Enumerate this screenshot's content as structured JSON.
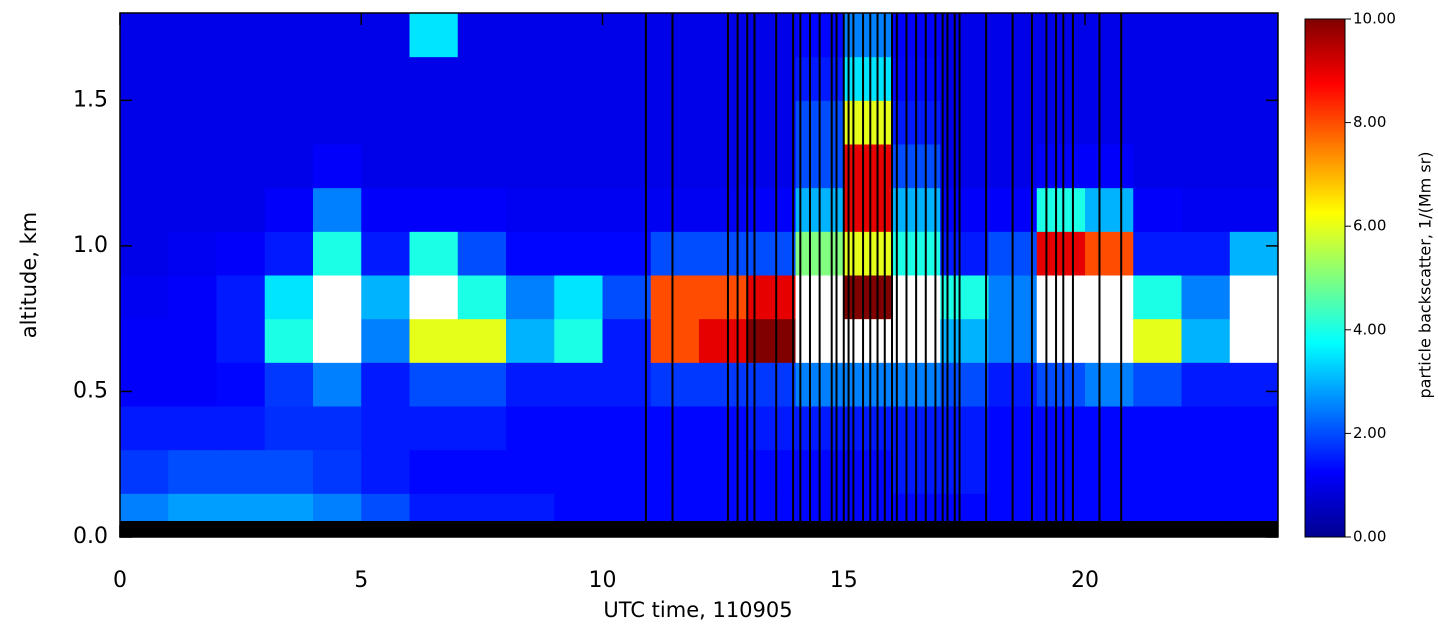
{
  "chart_data": {
    "type": "heatmap",
    "x_label": "UTC time, 110905",
    "y_label": "altitude, km",
    "colorbar_label": "particle backscatter, 1/(Mm sr)",
    "xlim": [
      0,
      24
    ],
    "ylim": [
      0,
      1.8
    ],
    "xticks": [
      0,
      5,
      10,
      15,
      20
    ],
    "yticks": [
      {
        "value": 0,
        "label": "0.0"
      },
      {
        "value": 0.5,
        "label": "0.5"
      },
      {
        "value": 1,
        "label": "1.0"
      },
      {
        "value": 1.5,
        "label": "1.5"
      }
    ],
    "clim": [
      0,
      10
    ],
    "cticks": [
      {
        "value": 0,
        "label": "0.00"
      },
      {
        "value": 2,
        "label": "2.00"
      },
      {
        "value": 4,
        "label": "4.00"
      },
      {
        "value": 6,
        "label": "6.00"
      },
      {
        "value": 8,
        "label": "8.00"
      },
      {
        "value": 10,
        "label": "10.00"
      }
    ],
    "x_edges": [
      0,
      1,
      2,
      3,
      4,
      5,
      6,
      7,
      8,
      9,
      10,
      11,
      12,
      13,
      14,
      15,
      16,
      17,
      18,
      19,
      20,
      21,
      22,
      23,
      24
    ],
    "y_edges": [
      0,
      0.15,
      0.3,
      0.45,
      0.6,
      0.75,
      0.9,
      1.05,
      1.2,
      1.35,
      1.5,
      1.65,
      1.8
    ],
    "z": [
      [
        2.5,
        2.8,
        2.8,
        2.8,
        2.5,
        2.0,
        1.5,
        1.5,
        1.5,
        1.3,
        1.3,
        1.3,
        1.3,
        1.3,
        1.3,
        1.3,
        1.3,
        1.3,
        1.3,
        1.3,
        1.3,
        1.3,
        1.3,
        1.3
      ],
      [
        1.8,
        2.0,
        2.0,
        2.0,
        1.8,
        1.5,
        1.3,
        1.3,
        1.3,
        1.3,
        1.3,
        1.3,
        1.3,
        1.3,
        1.3,
        1.3,
        1.5,
        1.5,
        1.3,
        1.3,
        1.3,
        1.3,
        1.3,
        1.3
      ],
      [
        1.5,
        1.5,
        1.5,
        1.7,
        1.7,
        1.5,
        1.5,
        1.5,
        1.3,
        1.3,
        1.3,
        1.3,
        1.3,
        1.5,
        1.5,
        1.5,
        1.5,
        1.5,
        1.3,
        1.3,
        1.3,
        1.3,
        1.3,
        1.3
      ],
      [
        1.2,
        1.2,
        1.3,
        1.8,
        2.5,
        1.5,
        2.0,
        2.0,
        1.5,
        1.5,
        1.5,
        1.8,
        1.8,
        1.8,
        2.5,
        2.5,
        2.5,
        2.0,
        1.5,
        2.0,
        2.5,
        2.0,
        1.5,
        1.5
      ],
      [
        1.2,
        1.2,
        1.5,
        4.0,
        11,
        2.5,
        6,
        6,
        3.0,
        4.0,
        1.5,
        8,
        9,
        10,
        11,
        11,
        11,
        3,
        2.5,
        11,
        11,
        6,
        3,
        11
      ],
      [
        1.1,
        1.2,
        1.5,
        3.5,
        11,
        3,
        11,
        4,
        2.5,
        3.5,
        2,
        8,
        8,
        9,
        11,
        10,
        11,
        4,
        2.5,
        11,
        11,
        4,
        2.5,
        11
      ],
      [
        1.0,
        1.1,
        1.2,
        1.5,
        4,
        1.5,
        4,
        2,
        1.3,
        1.3,
        1.3,
        2,
        2,
        2,
        5,
        6,
        4,
        1.5,
        2,
        9,
        8,
        1.5,
        1.5,
        3
      ],
      [
        1.0,
        1,
        1,
        1.2,
        2.5,
        1.2,
        1.2,
        1.2,
        1.1,
        1.1,
        1.1,
        1.1,
        1.1,
        1.2,
        3,
        9,
        3,
        1.2,
        1.2,
        4,
        3,
        1.2,
        1.1,
        1.1
      ],
      [
        1,
        1,
        1,
        1,
        1.2,
        1,
        1,
        1,
        1,
        1,
        1,
        1,
        1,
        1,
        2,
        9,
        2,
        1,
        1,
        1.2,
        1.2,
        1,
        1,
        1
      ],
      [
        1,
        1,
        1,
        1,
        1,
        1,
        1,
        1,
        1,
        1,
        1,
        1,
        1,
        1,
        2,
        6,
        1.5,
        1,
        1,
        1,
        1,
        1,
        1,
        1
      ],
      [
        1,
        1,
        1,
        1,
        1,
        1,
        1,
        1,
        1,
        1,
        1,
        1,
        1,
        1,
        1.5,
        3.5,
        1.3,
        1,
        1,
        1,
        1,
        1,
        1,
        1
      ],
      [
        1,
        1,
        1,
        1,
        1,
        1,
        3.5,
        1,
        1,
        1,
        1,
        1,
        1,
        1,
        1.3,
        2.5,
        1.2,
        1,
        1,
        1,
        1,
        1,
        1,
        1
      ]
    ],
    "flag_times": [
      10.9,
      11.45,
      12.6,
      12.8,
      13.0,
      13.15,
      13.6,
      13.95,
      14.1,
      14.3,
      14.5,
      14.75,
      14.85,
      15.0,
      15.1,
      15.2,
      15.4,
      15.55,
      15.7,
      15.85,
      16.0,
      16.1,
      16.3,
      16.5,
      16.7,
      16.9,
      17.05,
      17.15,
      17.3,
      17.4,
      17.95,
      18.5,
      18.9,
      19.2,
      19.4,
      19.55,
      19.75,
      20.3,
      20.75
    ]
  }
}
